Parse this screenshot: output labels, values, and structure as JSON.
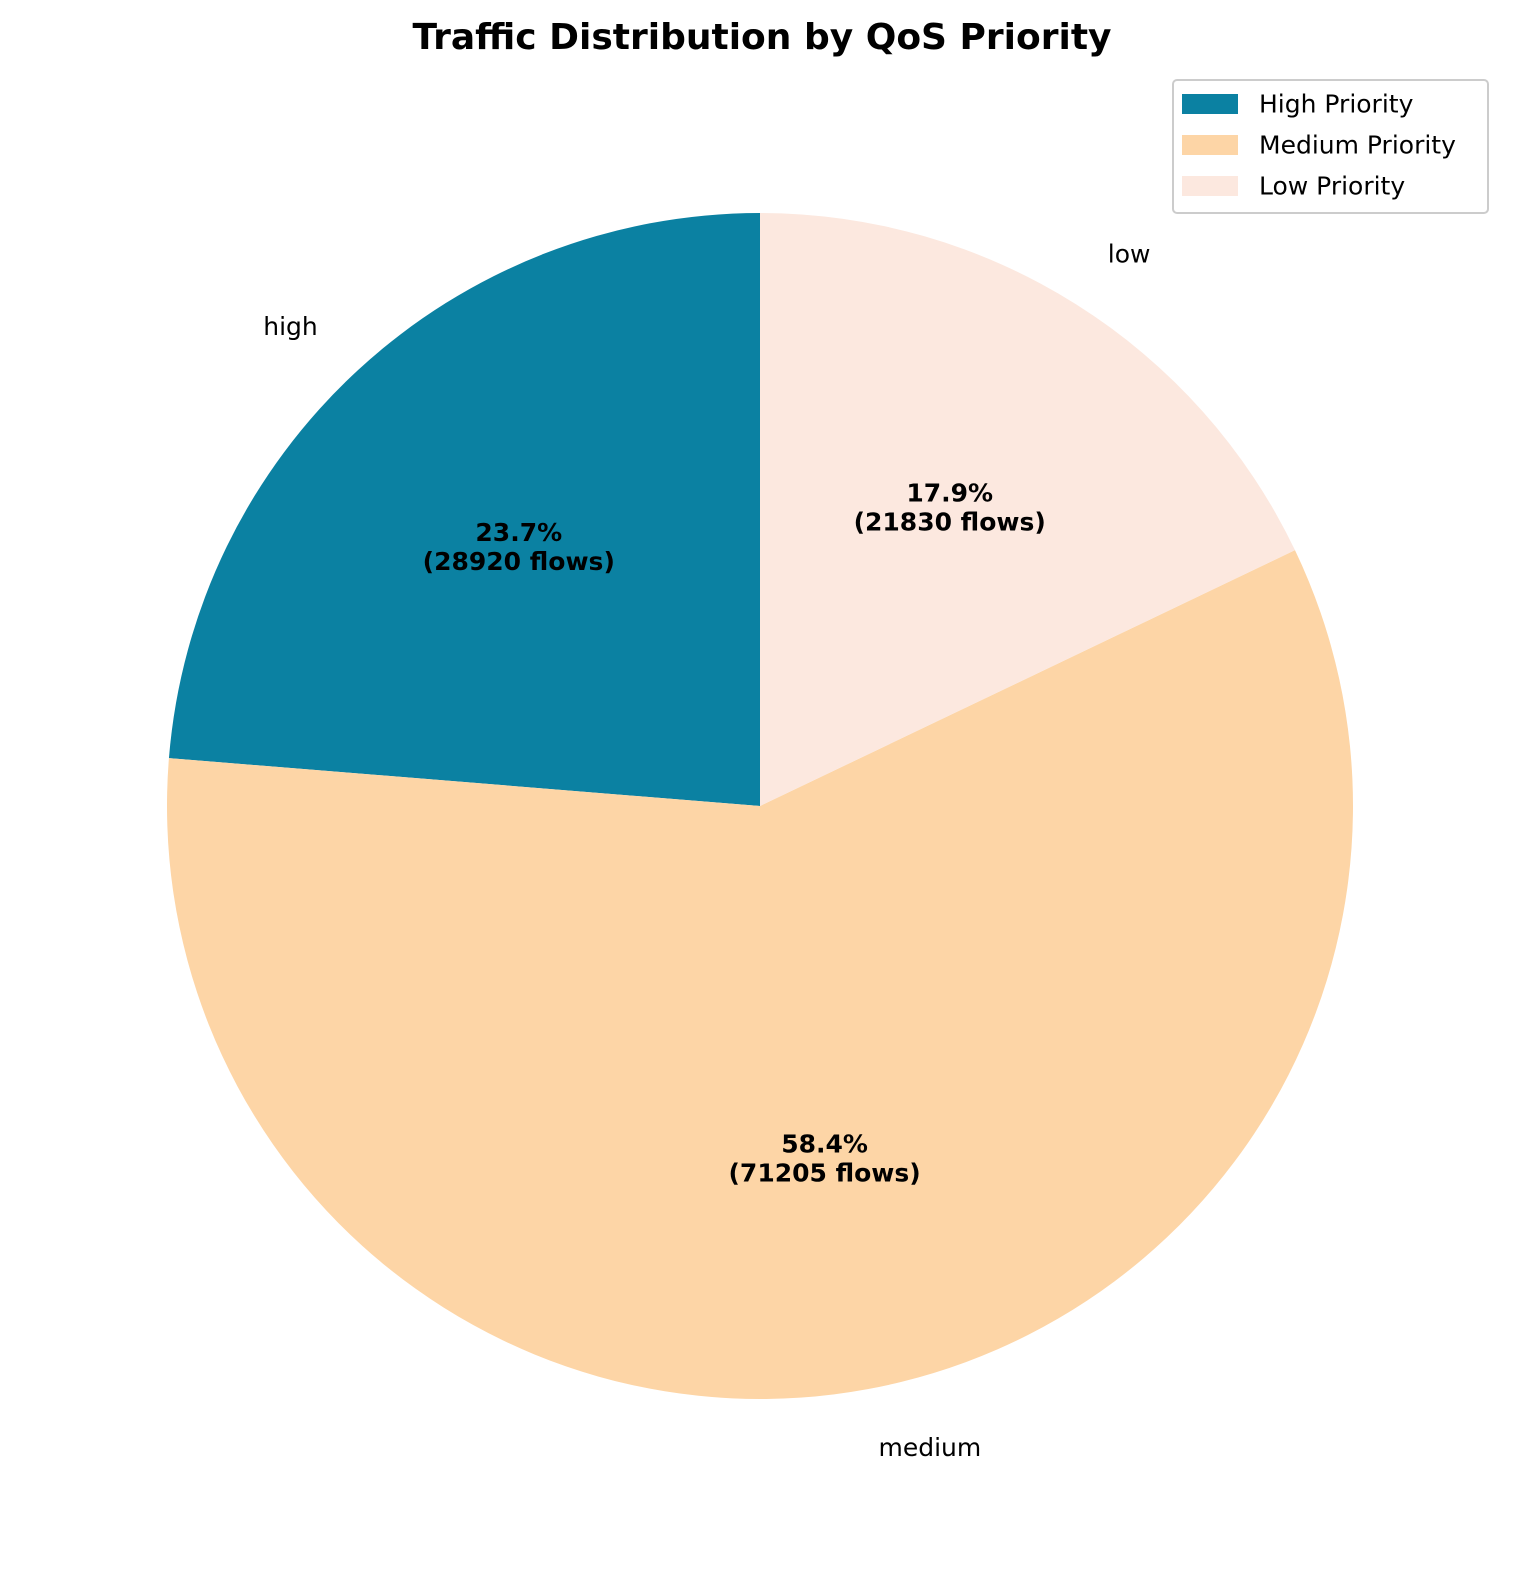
{
  "chart_data": {
    "type": "pie",
    "title": "Traffic Distribution by QoS Priority",
    "start_angle_deg": 90,
    "direction": "counterclockwise",
    "legend_placement": "top-right",
    "slices": [
      {
        "key": "high",
        "label": "high",
        "value": 28920,
        "percent_label": "23.7%",
        "count_label": "(28920 flows)",
        "color": "#0b81a2",
        "legend": "High Priority"
      },
      {
        "key": "medium",
        "label": "medium",
        "value": 71205,
        "percent_label": "58.4%",
        "count_label": "(71205 flows)",
        "color": "#fdd5a6",
        "legend": "Medium Priority"
      },
      {
        "key": "low",
        "label": "low",
        "value": 21830,
        "percent_label": "17.9%",
        "count_label": "(21830 flows)",
        "color": "#fce8df",
        "legend": "Low Priority"
      }
    ]
  }
}
